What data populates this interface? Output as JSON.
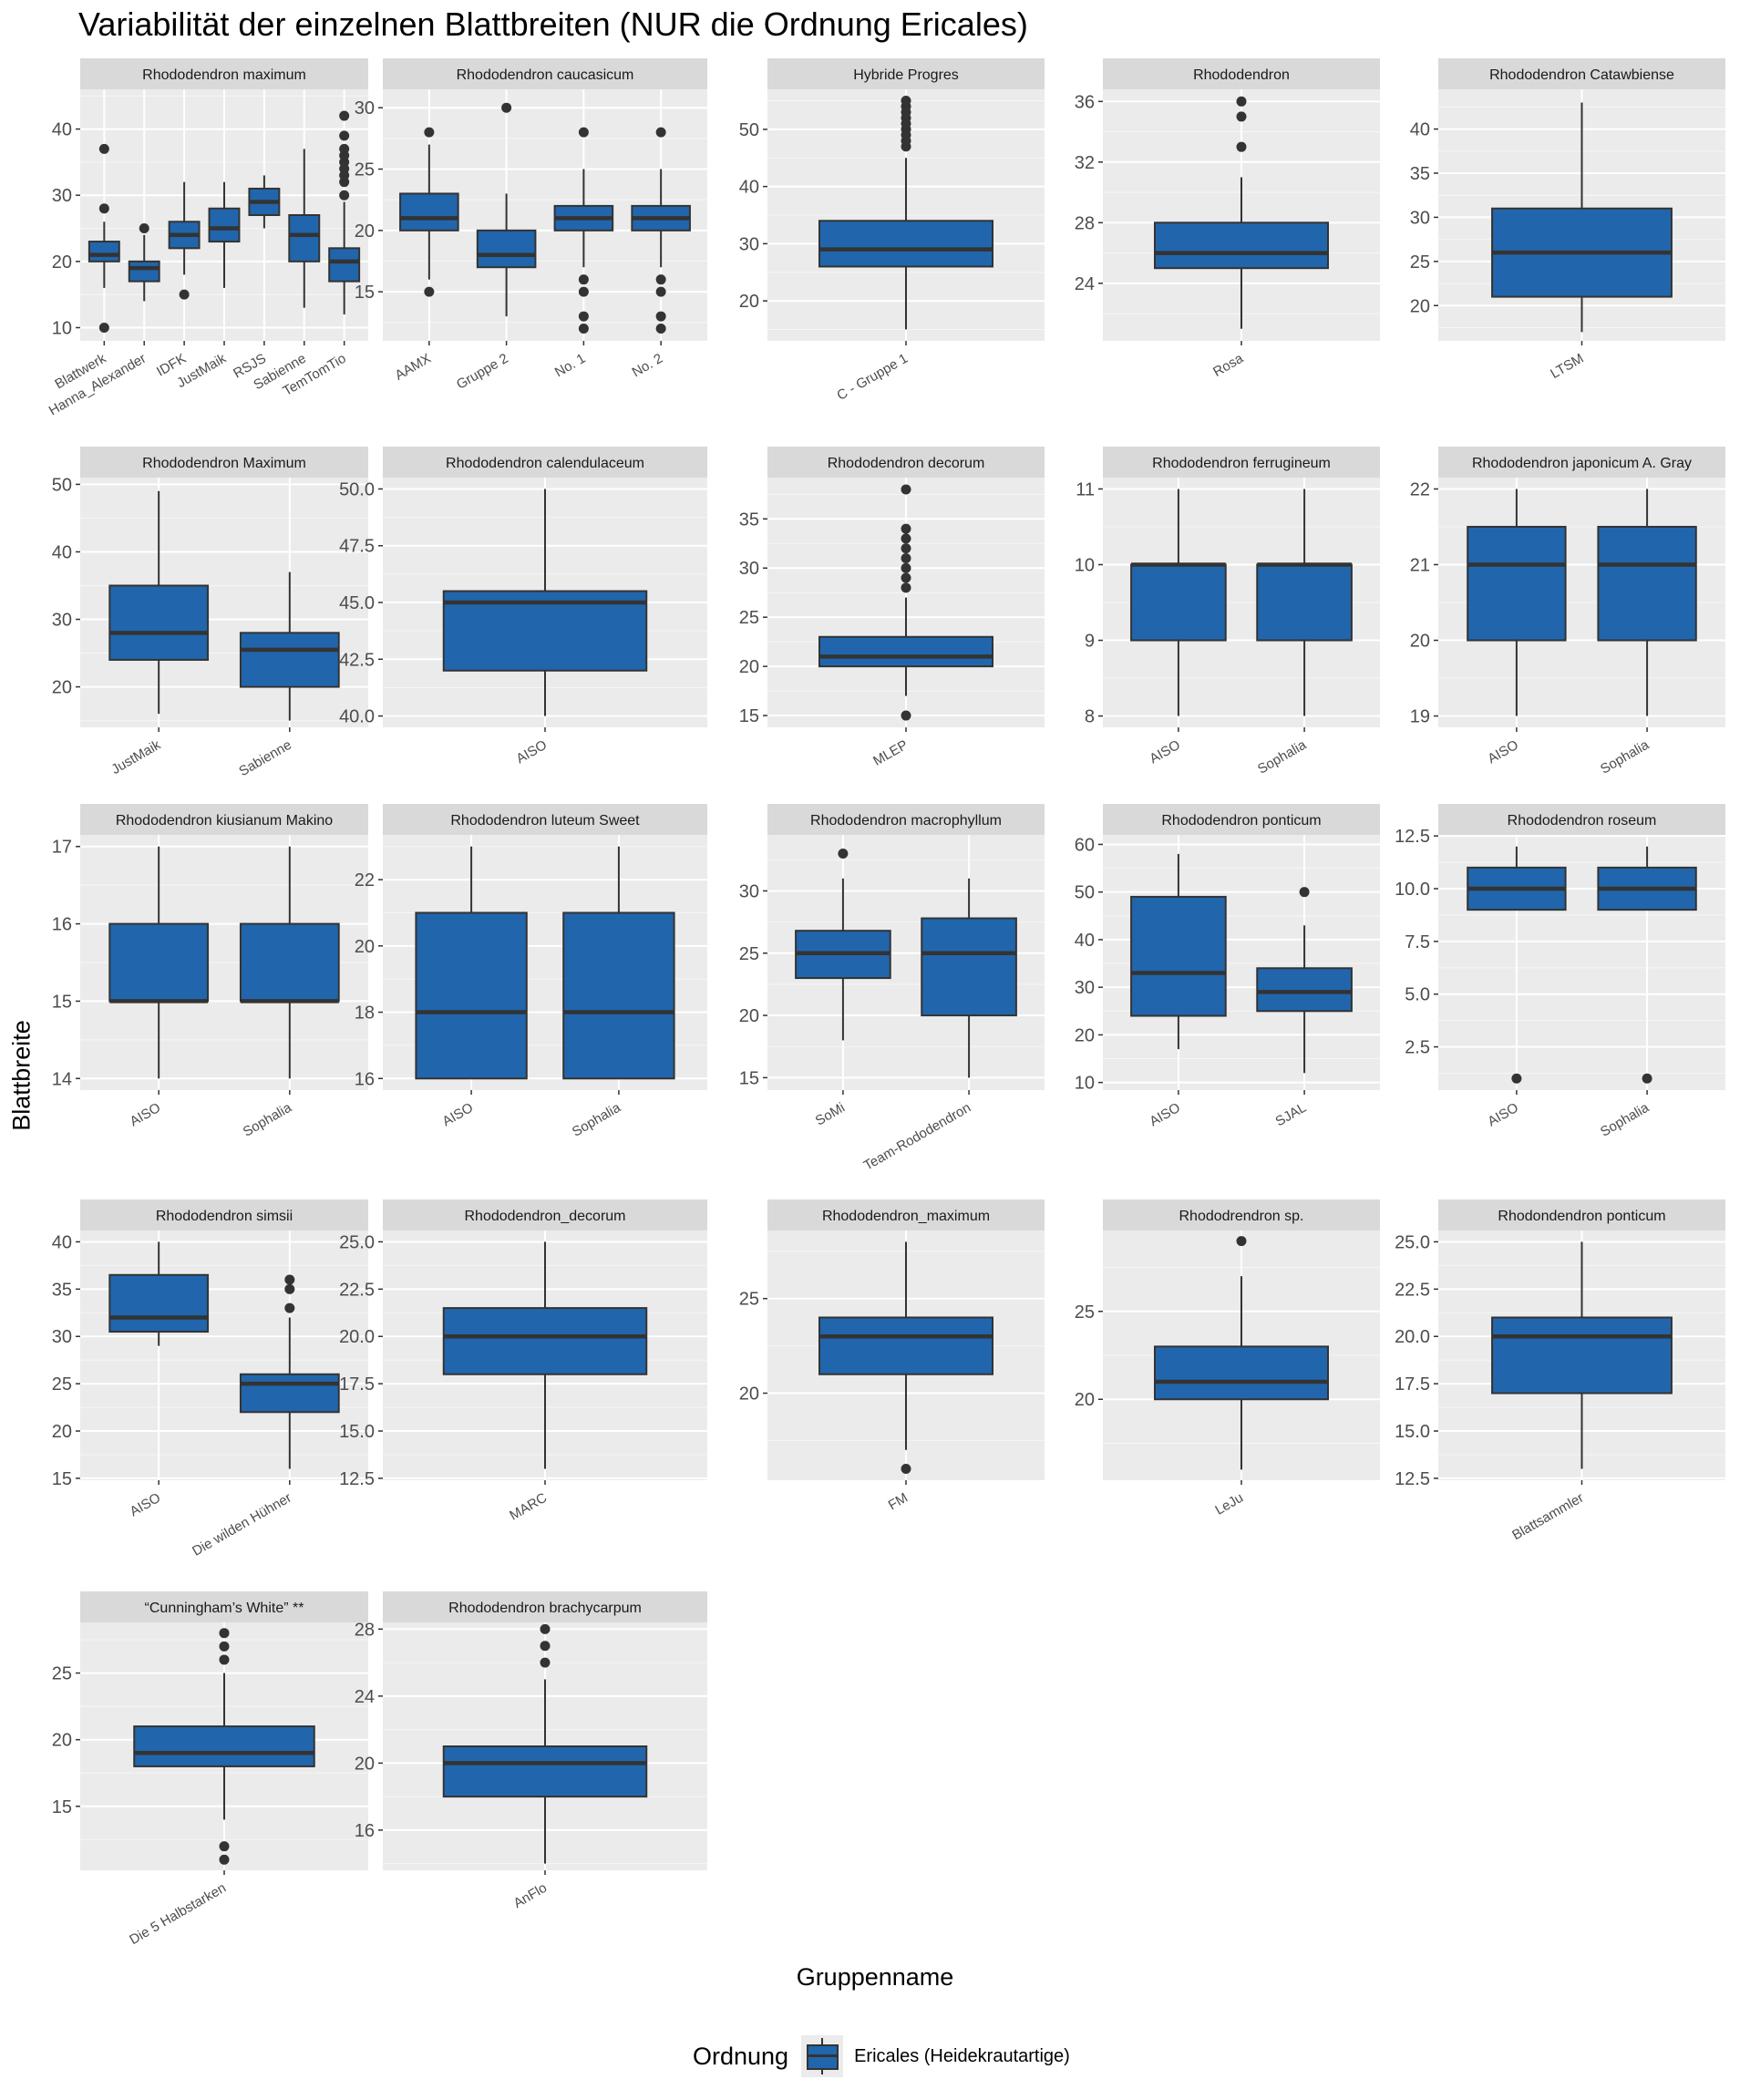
{
  "title": "Variabilität der einzelnen Blattbreiten (NUR die Ordnung Ericales)",
  "y_axis_label": "Blattbreite",
  "x_axis_label": "Gruppenname",
  "legend": {
    "title": "Ordnung",
    "label": "Ericales (Heidekrautartige)",
    "color": "#2166ac"
  },
  "colors": {
    "panel_bg": "#ebebeb",
    "strip_bg": "#d9d9d9",
    "box_fill": "#2166ac",
    "box_line": "#333333"
  },
  "chart_data": {
    "type": "boxplot",
    "grid": true,
    "legend_position": "bottom",
    "panels": [
      {
        "title": "Rhododendron maximum",
        "ylim": [
          8,
          46
        ],
        "yticks": [
          10,
          20,
          30,
          40
        ],
        "groups": [
          {
            "name": "Blattwerk",
            "min": 16,
            "q1": 20,
            "median": 21,
            "q3": 23,
            "max": 26,
            "outliers": [
              10,
              28,
              37
            ]
          },
          {
            "name": "Hanna_Alexander",
            "min": 14,
            "q1": 17,
            "median": 19,
            "q3": 20,
            "max": 24,
            "outliers": [
              25
            ]
          },
          {
            "name": "IDFK",
            "min": 18,
            "q1": 22,
            "median": 24,
            "q3": 26,
            "max": 32,
            "outliers": [
              15
            ]
          },
          {
            "name": "JustMaik",
            "min": 16,
            "q1": 23,
            "median": 25,
            "q3": 28,
            "max": 32,
            "outliers": []
          },
          {
            "name": "RSJS",
            "min": 25,
            "q1": 27,
            "median": 29,
            "q3": 31,
            "max": 33,
            "outliers": []
          },
          {
            "name": "Sabienne",
            "min": 13,
            "q1": 20,
            "median": 24,
            "q3": 27,
            "max": 37,
            "outliers": []
          },
          {
            "name": "TemTomTio",
            "min": 12,
            "q1": 17,
            "median": 20,
            "q3": 22,
            "max": 29,
            "outliers": [
              30,
              32,
              33,
              34,
              35,
              36,
              37,
              39,
              42
            ]
          }
        ]
      },
      {
        "title": "Rhododendron caucasicum",
        "ylim": [
          11,
          31.5
        ],
        "yticks": [
          15,
          20,
          25,
          30
        ],
        "groups": [
          {
            "name": "AAMX",
            "min": 16,
            "q1": 20,
            "median": 21,
            "q3": 23,
            "max": 27,
            "outliers": [
              15,
              28
            ]
          },
          {
            "name": "Gruppe 2",
            "min": 13,
            "q1": 17,
            "median": 18,
            "q3": 20,
            "max": 23,
            "outliers": [
              30
            ]
          },
          {
            "name": "No. 1",
            "min": 17,
            "q1": 20,
            "median": 21,
            "q3": 22,
            "max": 25,
            "outliers": [
              12,
              13,
              15,
              16,
              28
            ]
          },
          {
            "name": "No. 2",
            "min": 17,
            "q1": 20,
            "median": 21,
            "q3": 22,
            "max": 25,
            "outliers": [
              12,
              13,
              15,
              16,
              28
            ]
          }
        ]
      },
      {
        "title": "Hybride Progres",
        "ylim": [
          13,
          57
        ],
        "yticks": [
          20,
          30,
          40,
          50
        ],
        "groups": [
          {
            "name": "C - Gruppe 1",
            "min": 15,
            "q1": 26,
            "median": 29,
            "q3": 34,
            "max": 45,
            "outliers": [
              47,
              48,
              49,
              50,
              51,
              52,
              53,
              54,
              55
            ]
          }
        ]
      },
      {
        "title": "Rhododendron",
        "ylim": [
          20.2,
          36.8
        ],
        "yticks": [
          24,
          28,
          32,
          36
        ],
        "groups": [
          {
            "name": "Rosa",
            "min": 21,
            "q1": 25,
            "median": 26,
            "q3": 28,
            "max": 31,
            "outliers": [
              33,
              35,
              36
            ]
          }
        ]
      },
      {
        "title": "Rhododendron Catawbiense",
        "ylim": [
          16,
          44.5
        ],
        "yticks": [
          20,
          25,
          30,
          35,
          40
        ],
        "groups": [
          {
            "name": "LTSM",
            "min": 17,
            "q1": 21,
            "median": 26,
            "q3": 31,
            "max": 43,
            "outliers": []
          }
        ]
      },
      {
        "title": "Rhododendron Maximum",
        "ylim": [
          14,
          51
        ],
        "yticks": [
          20,
          30,
          40,
          50
        ],
        "groups": [
          {
            "name": "JustMaik",
            "min": 16,
            "q1": 24,
            "median": 28,
            "q3": 35,
            "max": 49,
            "outliers": []
          },
          {
            "name": "Sabienne",
            "min": 15,
            "q1": 20,
            "median": 25.5,
            "q3": 28,
            "max": 37,
            "outliers": []
          }
        ]
      },
      {
        "title": "Rhododendron calendulaceum",
        "ylim": [
          39.5,
          50.5
        ],
        "yticks": [
          40.0,
          42.5,
          45.0,
          47.5,
          50.0
        ],
        "groups": [
          {
            "name": "AISO",
            "min": 40,
            "q1": 42,
            "median": 45,
            "q3": 45.5,
            "max": 50,
            "outliers": []
          }
        ]
      },
      {
        "title": "Rhododendron decorum",
        "ylim": [
          13.8,
          39.2
        ],
        "yticks": [
          15,
          20,
          25,
          30,
          35
        ],
        "groups": [
          {
            "name": "MLEP",
            "min": 17,
            "q1": 20,
            "median": 21,
            "q3": 23,
            "max": 27,
            "outliers": [
              15,
              28,
              29,
              30,
              31,
              32,
              33,
              34,
              38
            ]
          }
        ]
      },
      {
        "title": "Rhododendron ferrugineum",
        "ylim": [
          7.85,
          11.15
        ],
        "yticks": [
          8,
          9,
          10,
          11
        ],
        "groups": [
          {
            "name": "AISO",
            "min": 8,
            "q1": 9,
            "median": 10,
            "q3": 10,
            "max": 11,
            "outliers": []
          },
          {
            "name": "Sophalia",
            "min": 8,
            "q1": 9,
            "median": 10,
            "q3": 10,
            "max": 11,
            "outliers": []
          }
        ]
      },
      {
        "title": "Rhododendron japonicum A. Gray",
        "ylim": [
          18.85,
          22.15
        ],
        "yticks": [
          19,
          20,
          21,
          22
        ],
        "groups": [
          {
            "name": "AISO",
            "min": 19,
            "q1": 20,
            "median": 21,
            "q3": 21.5,
            "max": 22,
            "outliers": []
          },
          {
            "name": "Sophalia",
            "min": 19,
            "q1": 20,
            "median": 21,
            "q3": 21.5,
            "max": 22,
            "outliers": []
          }
        ]
      },
      {
        "title": "Rhododendron kiusianum Makino",
        "ylim": [
          13.85,
          17.15
        ],
        "yticks": [
          14,
          15,
          16,
          17
        ],
        "groups": [
          {
            "name": "AISO",
            "min": 14,
            "q1": 15,
            "median": 15,
            "q3": 16,
            "max": 17,
            "outliers": []
          },
          {
            "name": "Sophalia",
            "min": 14,
            "q1": 15,
            "median": 15,
            "q3": 16,
            "max": 17,
            "outliers": []
          }
        ]
      },
      {
        "title": "Rhododendron luteum Sweet",
        "ylim": [
          15.65,
          23.35
        ],
        "yticks": [
          16,
          18,
          20,
          22
        ],
        "groups": [
          {
            "name": "AISO",
            "min": 16,
            "q1": 16,
            "median": 18,
            "q3": 21,
            "max": 23,
            "outliers": []
          },
          {
            "name": "Sophalia",
            "min": 16,
            "q1": 16,
            "median": 18,
            "q3": 21,
            "max": 23,
            "outliers": []
          }
        ]
      },
      {
        "title": "Rhododendron macrophyllum",
        "ylim": [
          14,
          34.5
        ],
        "yticks": [
          15,
          20,
          25,
          30
        ],
        "groups": [
          {
            "name": "SoMi",
            "min": 18,
            "q1": 23,
            "median": 25,
            "q3": 26.8,
            "max": 31,
            "outliers": [
              33
            ]
          },
          {
            "name": "Team-Rododendron",
            "min": 15,
            "q1": 20,
            "median": 25,
            "q3": 27.8,
            "max": 31,
            "outliers": []
          }
        ]
      },
      {
        "title": "Rhododendron ponticum",
        "ylim": [
          8.4,
          62
        ],
        "yticks": [
          10,
          20,
          30,
          40,
          50,
          60
        ],
        "groups": [
          {
            "name": "AISO",
            "min": 17,
            "q1": 24,
            "median": 33,
            "q3": 49,
            "max": 58,
            "outliers": []
          },
          {
            "name": "SJAL",
            "min": 12,
            "q1": 25,
            "median": 29,
            "q3": 34,
            "max": 43,
            "outliers": [
              50
            ]
          }
        ]
      },
      {
        "title": "Rhododendron roseum",
        "ylim": [
          0.45,
          12.55
        ],
        "yticks": [
          2.5,
          5.0,
          7.5,
          10.0,
          12.5
        ],
        "groups": [
          {
            "name": "AISO",
            "min": 9,
            "q1": 9,
            "median": 10,
            "q3": 11,
            "max": 12,
            "outliers": [
              1
            ]
          },
          {
            "name": "Sophalia",
            "min": 9,
            "q1": 9,
            "median": 10,
            "q3": 11,
            "max": 12,
            "outliers": [
              1
            ]
          }
        ]
      },
      {
        "title": "Rhododendron simsii",
        "ylim": [
          14.8,
          41.2
        ],
        "yticks": [
          15,
          20,
          25,
          30,
          35,
          40
        ],
        "groups": [
          {
            "name": "AISO",
            "min": 29,
            "q1": 30.5,
            "median": 32,
            "q3": 36.5,
            "max": 40,
            "outliers": []
          },
          {
            "name": "Die wilden Hühner",
            "min": 16,
            "q1": 22,
            "median": 25,
            "q3": 26,
            "max": 32,
            "outliers": [
              33,
              35,
              36
            ]
          }
        ]
      },
      {
        "title": "Rhododendron_decorum",
        "ylim": [
          12.4,
          25.6
        ],
        "yticks": [
          12.5,
          15.0,
          17.5,
          20.0,
          22.5,
          25.0
        ],
        "groups": [
          {
            "name": "MARC",
            "min": 13,
            "q1": 18,
            "median": 20,
            "q3": 21.5,
            "max": 25,
            "outliers": []
          }
        ]
      },
      {
        "title": "Rhododendron_maximum",
        "ylim": [
          15.4,
          28.6
        ],
        "yticks": [
          20,
          25
        ],
        "groups": [
          {
            "name": "FM",
            "min": 17,
            "q1": 21,
            "median": 23,
            "q3": 24,
            "max": 28,
            "outliers": [
              16
            ]
          }
        ]
      },
      {
        "title": "Rhododrendron sp.",
        "ylim": [
          15.4,
          29.6
        ],
        "yticks": [
          20,
          25
        ],
        "groups": [
          {
            "name": "LeJu",
            "min": 16,
            "q1": 20,
            "median": 21,
            "q3": 23,
            "max": 27,
            "outliers": [
              29
            ]
          }
        ]
      },
      {
        "title": "Rhodondendron ponticum",
        "ylim": [
          12.4,
          25.6
        ],
        "yticks": [
          12.5,
          15.0,
          17.5,
          20.0,
          22.5,
          25.0
        ],
        "groups": [
          {
            "name": "Blattsammler",
            "min": 13,
            "q1": 17,
            "median": 20,
            "q3": 21,
            "max": 25,
            "outliers": []
          }
        ]
      },
      {
        "title": "“Cunningham’s White” **",
        "ylim": [
          10.2,
          28.8
        ],
        "yticks": [
          15,
          20,
          25
        ],
        "groups": [
          {
            "name": "Die 5 Halbstarken",
            "min": 14,
            "q1": 18,
            "median": 19,
            "q3": 21,
            "max": 25,
            "outliers": [
              11,
              12,
              26,
              27,
              28
            ]
          }
        ]
      },
      {
        "title": "Rhododendron brachycarpum",
        "ylim": [
          13.6,
          28.4
        ],
        "yticks": [
          16,
          20,
          24,
          28
        ],
        "groups": [
          {
            "name": "AnFlo",
            "min": 14,
            "q1": 18,
            "median": 20,
            "q3": 21,
            "max": 25,
            "outliers": [
              26,
              27,
              28
            ]
          }
        ]
      }
    ]
  }
}
